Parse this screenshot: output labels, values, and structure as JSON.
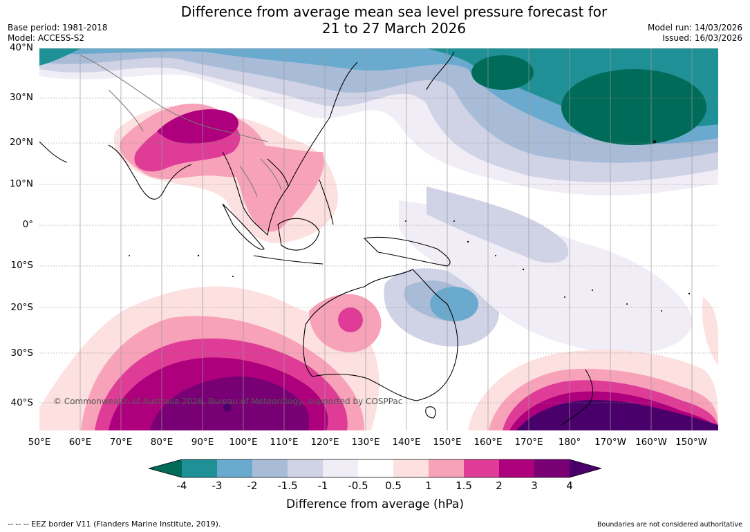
{
  "title": {
    "line1": "Difference from average mean sea level pressure forecast for",
    "line2": "21 to 27 March 2026"
  },
  "meta": {
    "base_period": "Base period: 1981-2018",
    "model": "Model: ACCESS-S2",
    "model_run": "Model run: 14/03/2026",
    "issued": "Issued: 16/03/2026"
  },
  "axes": {
    "lat_labels": [
      "40°N",
      "30°N",
      "20°N",
      "10°N",
      "0°",
      "10°S",
      "20°S",
      "30°S",
      "40°S"
    ],
    "lon_labels": [
      "50°E",
      "60°E",
      "70°E",
      "80°E",
      "90°E",
      "100°E",
      "110°E",
      "120°E",
      "130°E",
      "140°E",
      "150°E",
      "160°E",
      "170°E",
      "180°",
      "170°W",
      "160°W",
      "150°W"
    ]
  },
  "colorbar": {
    "ticks": [
      "-4",
      "-3",
      "-2",
      "-1.5",
      "-1",
      "-0.5",
      "0.5",
      "1",
      "1.5",
      "2",
      "3",
      "4"
    ],
    "colors": [
      "#006b59",
      "#1f9196",
      "#6aaace",
      "#a8bcd8",
      "#d0d2e6",
      "#f0edf6",
      "#ffffff",
      "#fde0e0",
      "#f7a2b8",
      "#de3c96",
      "#ae007d",
      "#780074",
      "#4a006b"
    ],
    "label": "Difference from average (hPa)"
  },
  "copyright": "© Commonwealth of Australia 2026, Bureau of Meteorology, supported by COSPPac",
  "footer": {
    "eez": "--  --  -- EEZ border V11 (Flanders Marine Institute, 2019).",
    "boundaries": "Boundaries are not considered authoritative"
  }
}
